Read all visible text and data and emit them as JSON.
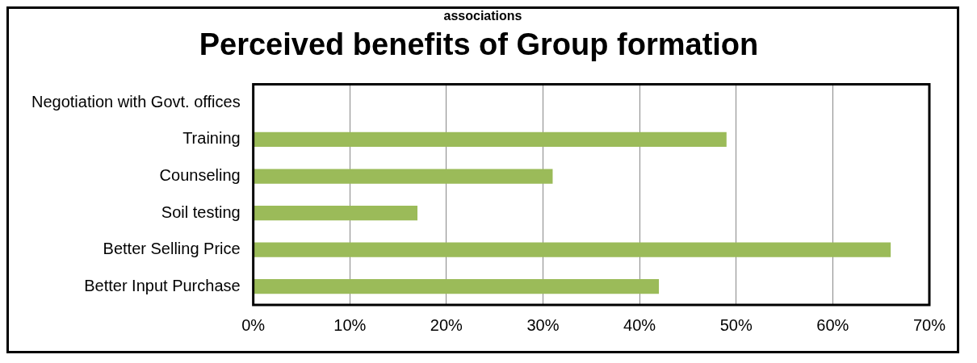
{
  "chart_data": {
    "type": "bar",
    "orientation": "horizontal",
    "title": "Perceived benefits of Group formation",
    "annotations": [
      "associations"
    ],
    "categories": [
      "Negotiation with Govt. offices",
      "Training",
      "Counseling",
      "Soil testing",
      "Better Selling Price",
      "Better Input Purchase"
    ],
    "values": [
      0,
      49,
      31,
      17,
      66,
      42
    ],
    "color": "#9bbb59",
    "xlim": [
      0,
      70
    ],
    "xticks": [
      {
        "value": 0,
        "label": "0%"
      },
      {
        "value": 10,
        "label": "10%"
      },
      {
        "value": 20,
        "label": "20%"
      },
      {
        "value": 30,
        "label": "30%"
      },
      {
        "value": 40,
        "label": "40%"
      },
      {
        "value": 50,
        "label": "50%"
      },
      {
        "value": 60,
        "label": "60%"
      },
      {
        "value": 70,
        "label": "70%"
      }
    ],
    "grid": "x",
    "legend": false
  }
}
